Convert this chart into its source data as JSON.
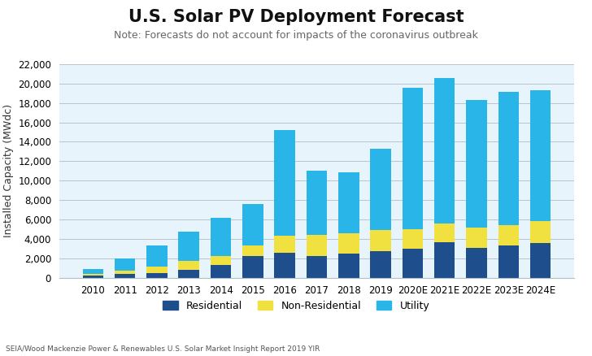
{
  "categories": [
    "2010",
    "2011",
    "2012",
    "2013",
    "2014",
    "2015",
    "2016",
    "2017",
    "2018",
    "2019",
    "2020E",
    "2021E",
    "2022E",
    "2023E",
    "2024E"
  ],
  "residential": [
    200,
    350,
    500,
    800,
    1300,
    2200,
    2600,
    2200,
    2450,
    2750,
    3000,
    3650,
    3100,
    3300,
    3600
  ],
  "non_residential": [
    150,
    400,
    650,
    900,
    900,
    1100,
    1700,
    2200,
    2100,
    2200,
    2000,
    1900,
    2100,
    2100,
    2200
  ],
  "utility": [
    550,
    1200,
    2200,
    3000,
    3950,
    4250,
    10900,
    6600,
    6300,
    8350,
    14600,
    15000,
    13100,
    13700,
    13500
  ],
  "residential_color": "#1f4e8c",
  "non_residential_color": "#f0e040",
  "utility_color": "#29b5e8",
  "title": "U.S. Solar PV Deployment Forecast",
  "subtitle": "Note: Forecasts do not account for impacts of the coronavirus outbreak",
  "ylabel": "Installed Capacity (MWdc)",
  "ylim": [
    0,
    22000
  ],
  "yticks": [
    0,
    2000,
    4000,
    6000,
    8000,
    10000,
    12000,
    14000,
    16000,
    18000,
    20000,
    22000
  ],
  "plot_bg_color": "#e8f4fb",
  "fig_bg_color": "#ffffff",
  "legend_labels": [
    "Residential",
    "Non-Residential",
    "Utility"
  ],
  "footer_text": "SEIA/Wood Mackenzie Power & Renewables U.S. Solar Market Insight Report 2019 YIR",
  "title_fontsize": 15,
  "subtitle_fontsize": 9,
  "ylabel_fontsize": 9,
  "tick_fontsize": 8.5,
  "grid_color": "#b0bec5",
  "spine_color": "#b0bec5"
}
